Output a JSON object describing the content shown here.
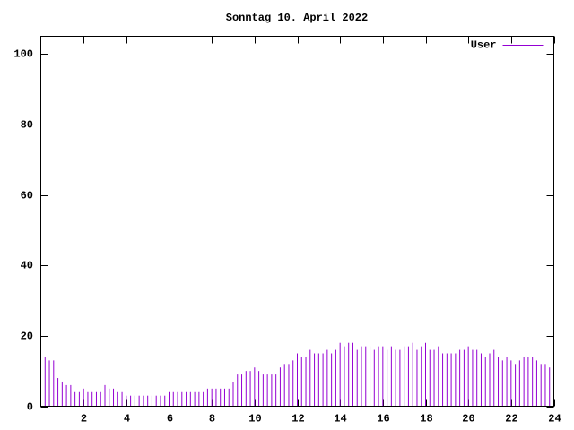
{
  "chart_data": {
    "type": "impulse",
    "title": "Sonntag 10. April 2022",
    "x": [
      0,
      0.2,
      0.4,
      0.6,
      0.8,
      1,
      1.2,
      1.4,
      1.6,
      1.8,
      2,
      2.2,
      2.4,
      2.6,
      2.8,
      3,
      3.2,
      3.4,
      3.6,
      3.8,
      4,
      4.2,
      4.4,
      4.6,
      4.8,
      5,
      5.2,
      5.4,
      5.6,
      5.8,
      6,
      6.2,
      6.4,
      6.6,
      6.8,
      7,
      7.2,
      7.4,
      7.6,
      7.8,
      8,
      8.2,
      8.4,
      8.6,
      8.8,
      9,
      9.2,
      9.4,
      9.6,
      9.8,
      10,
      10.2,
      10.4,
      10.6,
      10.8,
      11,
      11.2,
      11.4,
      11.6,
      11.8,
      12,
      12.2,
      12.4,
      12.6,
      12.8,
      13,
      13.2,
      13.4,
      13.6,
      13.8,
      14,
      14.2,
      14.4,
      14.6,
      14.8,
      15,
      15.2,
      15.4,
      15.6,
      15.8,
      16,
      16.2,
      16.4,
      16.6,
      16.8,
      17,
      17.2,
      17.4,
      17.6,
      17.8,
      18,
      18.2,
      18.4,
      18.6,
      18.8,
      19,
      19.2,
      19.4,
      19.6,
      19.8,
      20,
      20.2,
      20.4,
      20.6,
      20.8,
      21,
      21.2,
      21.4,
      21.6,
      21.8,
      22,
      22.2,
      22.4,
      22.6,
      22.8,
      23,
      23.2,
      23.4,
      23.6,
      23.8,
      24
    ],
    "series": [
      {
        "name": "User",
        "color": "#9400d3",
        "values": [
          14,
          14,
          13,
          13,
          8,
          7,
          6,
          6,
          4,
          4,
          5,
          4,
          4,
          4,
          4,
          6,
          5,
          5,
          4,
          4,
          3,
          3,
          3,
          3,
          3,
          3,
          3,
          3,
          3,
          3,
          4,
          4,
          4,
          4,
          4,
          4,
          4,
          4,
          4,
          5,
          5,
          5,
          5,
          5,
          5,
          7,
          9,
          9,
          10,
          10,
          11,
          10,
          9,
          9,
          9,
          9,
          11,
          12,
          12,
          13,
          15,
          14,
          14,
          16,
          15,
          15,
          15,
          16,
          15,
          16,
          18,
          17,
          18,
          18,
          16,
          17,
          17,
          17,
          16,
          17,
          17,
          16,
          17,
          16,
          16,
          17,
          17,
          18,
          16,
          17,
          18,
          16,
          16,
          17,
          15,
          15,
          15,
          15,
          16,
          16,
          17,
          16,
          16,
          15,
          14,
          15,
          16,
          14,
          13,
          14,
          13,
          12,
          13,
          14,
          14,
          14,
          13,
          12,
          12,
          11,
          9
        ]
      }
    ],
    "xlim": [
      0,
      24
    ],
    "xticks": [
      2,
      4,
      6,
      8,
      10,
      12,
      14,
      16,
      18,
      20,
      22,
      24
    ],
    "ylim": [
      0,
      105
    ],
    "yticks": [
      0,
      20,
      40,
      60,
      80,
      100
    ],
    "legend": "top-right"
  }
}
